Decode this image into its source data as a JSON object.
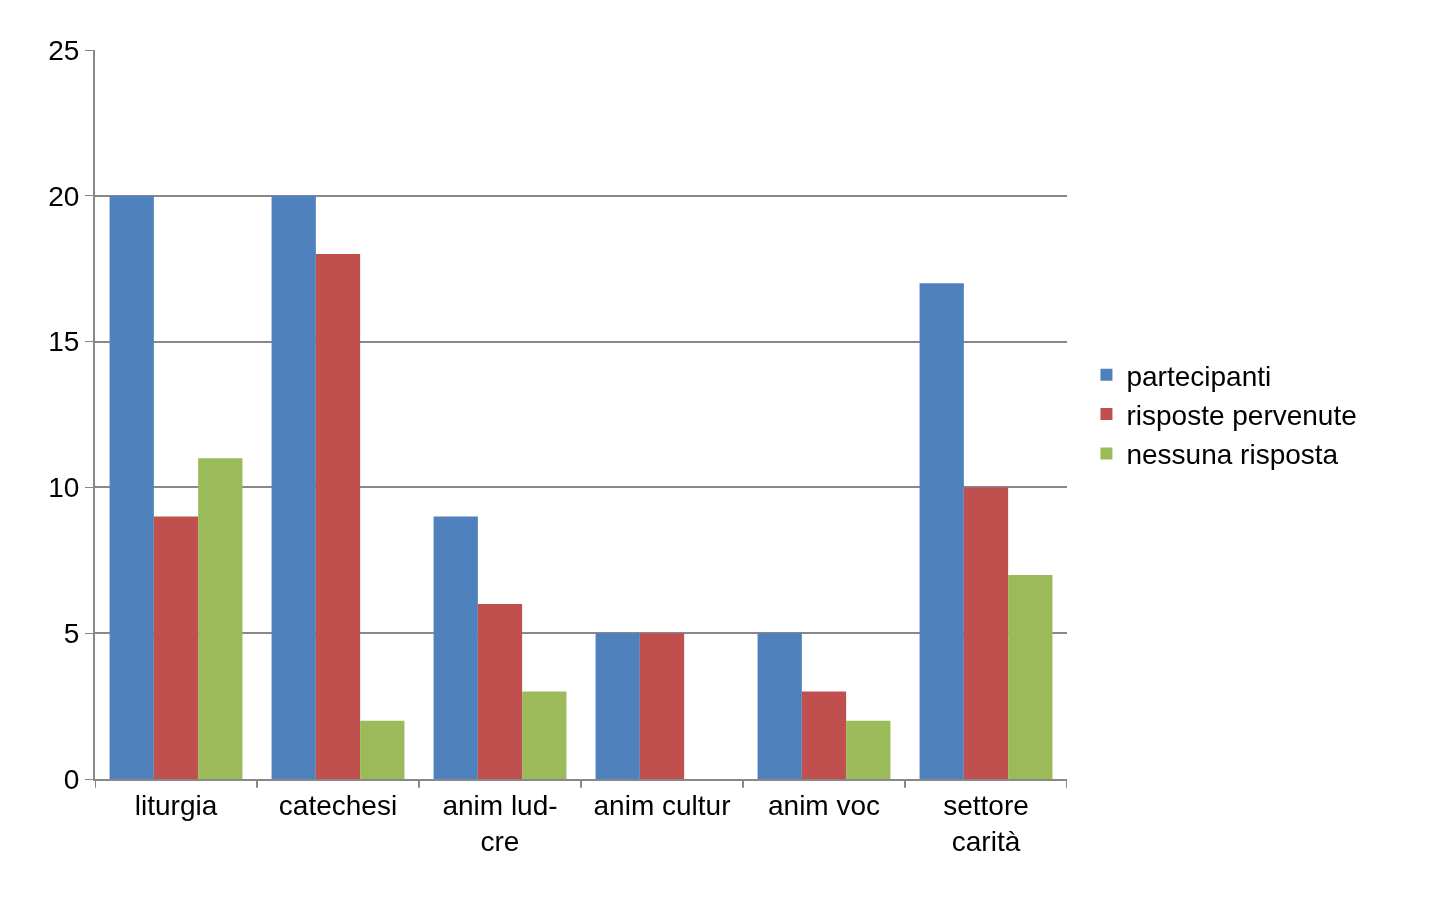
{
  "chart_data": {
    "type": "bar",
    "categories": [
      "liturgia",
      "catechesi",
      "anim lud-\ncre",
      "anim cultur",
      "anim voc",
      "settore\ncarità"
    ],
    "series": [
      {
        "name": "partecipanti",
        "color": "#4f81bd",
        "values": [
          20,
          20,
          9,
          5,
          5,
          17
        ]
      },
      {
        "name": "risposte pervenute",
        "color": "#c0504d",
        "values": [
          9,
          18,
          6,
          5,
          3,
          10
        ]
      },
      {
        "name": "nessuna risposta",
        "color": "#9bbb59",
        "values": [
          11,
          2,
          3,
          0,
          2,
          7
        ]
      }
    ],
    "ylim": [
      0,
      25
    ],
    "yticks": [
      0,
      5,
      10,
      15,
      20,
      25
    ],
    "grid": "y",
    "legend": "right"
  }
}
